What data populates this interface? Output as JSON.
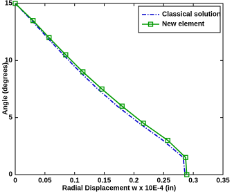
{
  "chart_data": {
    "type": "line",
    "xlabel": "Radial Displacement w x 10E-4 (in)",
    "ylabel": "Angle (degrees)",
    "xlim": [
      0,
      0.35
    ],
    "xticks": [
      0,
      0.05,
      0.1,
      0.15,
      0.2,
      0.25,
      0.3,
      0.35
    ],
    "ylim": [
      0,
      15
    ],
    "yticks": [
      0,
      5,
      10,
      15
    ],
    "grid": false,
    "legend": "northeast",
    "series": [
      {
        "name": "Classical solution",
        "color": "#0000cc",
        "style": "dashdot",
        "marker": "none",
        "x": [
          0,
          0.028,
          0.054,
          0.081,
          0.109,
          0.139,
          0.172,
          0.209,
          0.249,
          0.283,
          0.286
        ],
        "values": [
          15,
          13.5,
          12,
          10.5,
          9,
          7.5,
          6,
          4.5,
          3,
          1.5,
          0
        ]
      },
      {
        "name": "New element",
        "color": "#009900",
        "style": "solid",
        "marker": "square",
        "x": [
          0,
          0.03,
          0.057,
          0.085,
          0.114,
          0.146,
          0.18,
          0.216,
          0.257,
          0.287,
          0.289
        ],
        "values": [
          15,
          13.5,
          12,
          10.5,
          9,
          7.5,
          6,
          4.5,
          3,
          1.5,
          0
        ]
      }
    ]
  }
}
